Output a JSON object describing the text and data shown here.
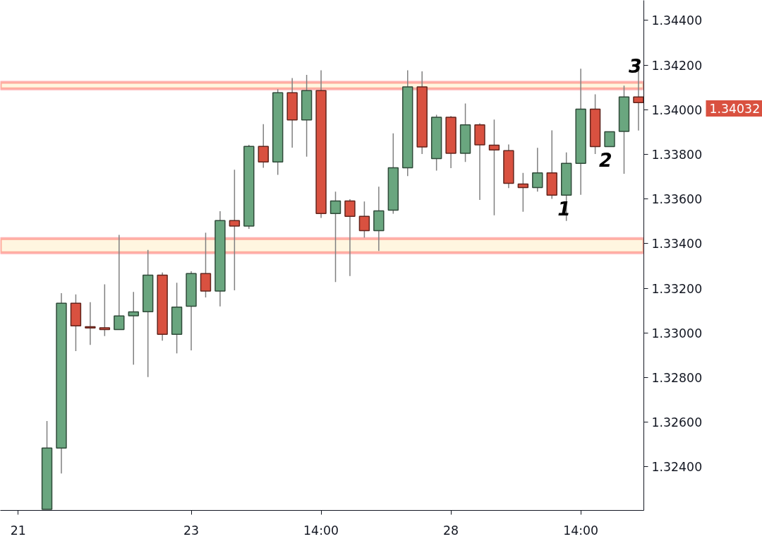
{
  "chart_data": {
    "type": "candlestick",
    "categories": [
      "21",
      null,
      null,
      null,
      null,
      null,
      null,
      null,
      null,
      null,
      null,
      null,
      "23",
      null,
      null,
      null,
      null,
      null,
      null,
      null,
      null,
      "14:00",
      null,
      null,
      null,
      null,
      null,
      null,
      null,
      null,
      "28",
      null,
      null,
      null,
      null,
      null,
      null,
      null,
      null,
      "14:00",
      null,
      null,
      null,
      null
    ],
    "ohlc": [
      null,
      null,
      [
        1.3221,
        1.32605,
        1.3221,
        1.32484
      ],
      [
        1.32484,
        1.33178,
        1.3237,
        1.33133
      ],
      [
        1.33133,
        1.33173,
        1.32919,
        1.33032
      ],
      [
        1.33028,
        1.33138,
        1.32946,
        1.33022
      ],
      [
        1.33023,
        1.33218,
        1.32986,
        1.33015
      ],
      [
        1.33015,
        1.33439,
        1.33015,
        1.33076
      ],
      [
        1.33077,
        1.33184,
        1.32858,
        1.33094
      ],
      [
        1.33095,
        1.33372,
        1.32802,
        1.33259
      ],
      [
        1.33259,
        1.33271,
        1.32965,
        1.32994
      ],
      [
        1.32994,
        1.33225,
        1.32908,
        1.33116
      ],
      [
        1.3312,
        1.33276,
        1.32922,
        1.33266
      ],
      [
        1.33266,
        1.33449,
        1.33159,
        1.33188
      ],
      [
        1.33188,
        1.33545,
        1.33119,
        1.33503
      ],
      [
        1.33503,
        1.33731,
        1.33191,
        1.33479
      ],
      [
        1.33479,
        1.33843,
        1.33466,
        1.33836
      ],
      [
        1.33836,
        1.33935,
        1.3374,
        1.33766
      ],
      [
        1.33766,
        1.34092,
        1.33708,
        1.34076
      ],
      [
        1.34076,
        1.34142,
        1.3383,
        1.33954
      ],
      [
        1.33954,
        1.34156,
        1.3379,
        1.34086
      ],
      [
        1.34086,
        1.34177,
        1.33515,
        1.33535
      ],
      [
        1.33535,
        1.33633,
        1.33228,
        1.33591
      ],
      [
        1.33591,
        1.33599,
        1.33255,
        1.33522
      ],
      [
        1.33522,
        1.33589,
        1.33427,
        1.33458
      ],
      [
        1.33458,
        1.33655,
        1.33367,
        1.33547
      ],
      [
        1.3355,
        1.33894,
        1.33534,
        1.3374
      ],
      [
        1.3374,
        1.34177,
        1.33703,
        1.34102
      ],
      [
        1.34102,
        1.34172,
        1.33802,
        1.33833
      ],
      [
        1.33781,
        1.33977,
        1.33727,
        1.33966
      ],
      [
        1.33966,
        1.33972,
        1.33738,
        1.33805
      ],
      [
        1.33805,
        1.34028,
        1.33766,
        1.33932
      ],
      [
        1.33932,
        1.33939,
        1.33596,
        1.33843
      ],
      [
        1.33841,
        1.33956,
        1.33527,
        1.3382
      ],
      [
        1.33817,
        1.33844,
        1.33649,
        1.3367
      ],
      [
        1.33667,
        1.33717,
        1.33543,
        1.33651
      ],
      [
        1.33651,
        1.33829,
        1.33633,
        1.33717
      ],
      [
        1.33717,
        1.33908,
        1.33601,
        1.33617
      ],
      [
        1.33617,
        1.33809,
        1.33502,
        1.3376
      ],
      [
        1.3376,
        1.34184,
        1.33619,
        1.34003
      ],
      [
        1.34003,
        1.34069,
        1.33802,
        1.33835
      ],
      [
        1.33835,
        1.33901,
        1.33835,
        1.33901
      ],
      [
        1.33903,
        1.34108,
        1.33713,
        1.34057
      ],
      [
        1.34057,
        1.34204,
        1.33907,
        1.34032
      ]
    ],
    "colors": [
      null,
      null,
      "#6aa67f",
      "#6aa67f",
      "#d95140",
      "#d95140",
      "#d95140",
      "#6aa67f",
      "#6aa67f",
      "#6aa67f",
      "#d95140",
      "#6aa67f",
      "#6aa67f",
      "#d95140",
      "#6aa67f",
      "#d95140",
      "#6aa67f",
      "#d95140",
      "#6aa67f",
      "#d95140",
      "#6aa67f",
      "#d95140",
      "#6aa67f",
      "#d95140",
      "#d95140",
      "#6aa67f",
      "#6aa67f",
      "#6aa67f",
      "#d95140",
      "#6aa67f",
      "#d95140",
      "#6aa67f",
      "#d95140",
      "#d95140",
      "#d95140",
      "#d95140",
      "#6aa67f",
      "#d95140",
      "#6aa67f",
      "#6aa67f",
      "#d95140",
      "#6aa67f",
      "#6aa67f",
      "#d95140"
    ],
    "ylim": [
      1.32205,
      1.3449
    ],
    "yticks": [
      {
        "value": 1.324,
        "label": "1.32400"
      },
      {
        "value": 1.326,
        "label": "1.32600"
      },
      {
        "value": 1.328,
        "label": "1.32800"
      },
      {
        "value": 1.33,
        "label": "1.33000"
      },
      {
        "value": 1.332,
        "label": "1.33200"
      },
      {
        "value": 1.334,
        "label": "1.33400"
      },
      {
        "value": 1.336,
        "label": "1.33600"
      },
      {
        "value": 1.338,
        "label": "1.33800"
      },
      {
        "value": 1.34,
        "label": "1.34000"
      },
      {
        "value": 1.342,
        "label": "1.34200"
      },
      {
        "value": 1.344,
        "label": "1.34400"
      }
    ],
    "bands": [
      {
        "axis": "y",
        "from": 1.34094,
        "to": 1.34123,
        "color": "#ff0000"
      },
      {
        "axis": "y",
        "from": 1.33359,
        "to": 1.33423,
        "color": "#ff0000"
      }
    ],
    "annotations": [
      "1",
      "2",
      "3",
      "1.34032"
    ],
    "grid": false
  }
}
